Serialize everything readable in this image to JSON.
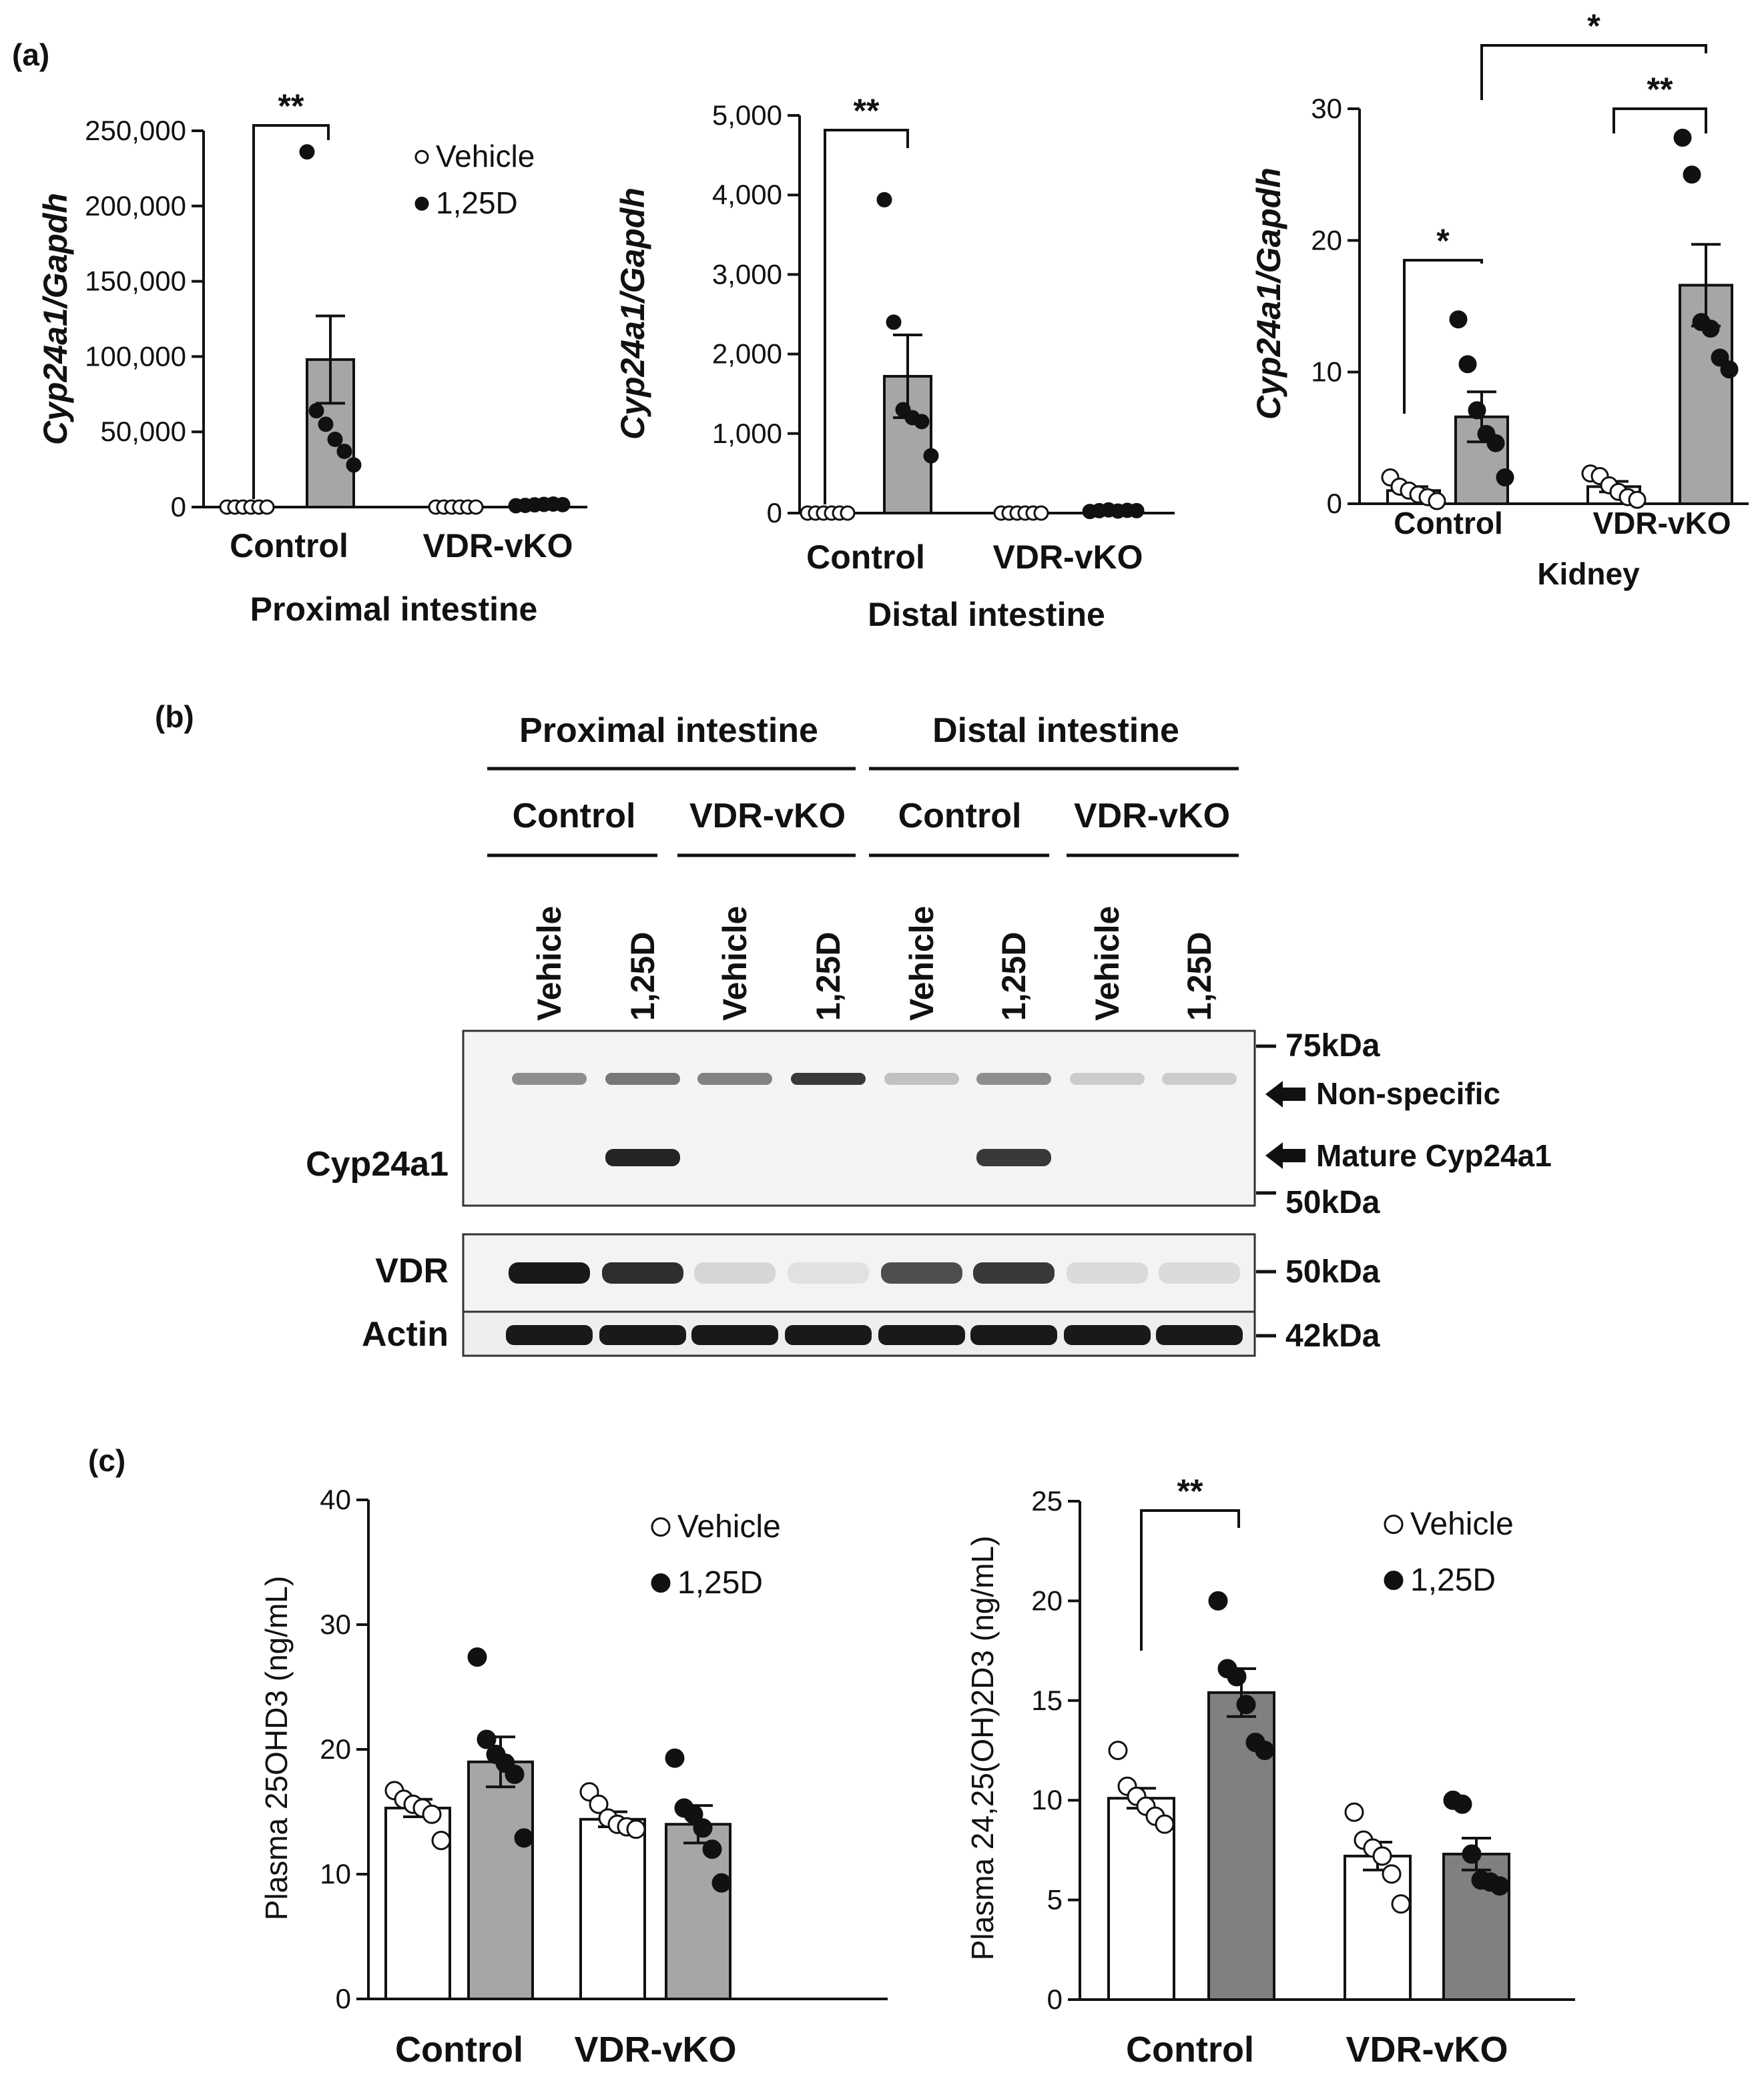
{
  "panel_labels": {
    "a": "(a)",
    "b": "(b)",
    "c": "(c)"
  },
  "legend": {
    "vehicle": "Vehicle",
    "treated": "1,25D"
  },
  "colors": {
    "bar_a": "#a6a6a6",
    "bar_c_left": "#a6a6a6",
    "bar_c_right": "#808080",
    "ink": "#111111"
  },
  "chart_data": [
    {
      "type": "bar",
      "panel": "(a)",
      "title": "",
      "xlabel": "Proximal intestine",
      "ylabel": "Cyp24a1/Gapdh",
      "ylim": [
        0,
        250000
      ],
      "yticks": [
        "0",
        "50,000",
        "100,000",
        "150,000",
        "200,000",
        "250,000"
      ],
      "categories": [
        "Control",
        "VDR-vKO"
      ],
      "series": [
        {
          "name": "Vehicle",
          "means": [
            0,
            0
          ],
          "sems": [
            0,
            0
          ],
          "points": [
            [
              0,
              0,
              0,
              0,
              0,
              0
            ],
            [
              0,
              0,
              0,
              0,
              0,
              0
            ]
          ]
        },
        {
          "name": "1,25D",
          "means": [
            98000,
            1500
          ],
          "sems": [
            29000,
            300
          ],
          "points": [
            [
              236000,
              64000,
              55000,
              45000,
              37000,
              28000
            ],
            [
              900,
              1100,
              1500,
              1800,
              2000,
              1600
            ]
          ]
        }
      ],
      "significance": [
        {
          "label": "**",
          "between": "Control Vehicle vs Control 1,25D"
        }
      ],
      "legend_position": "top-right"
    },
    {
      "type": "bar",
      "panel": "(a)",
      "title": "",
      "xlabel": "Distal intestine",
      "ylabel": "Cyp24a1/Gapdh",
      "ylim": [
        0,
        5000
      ],
      "yticks": [
        "0",
        "1,000",
        "2,000",
        "3,000",
        "4,000",
        "5,000"
      ],
      "categories": [
        "Control",
        "VDR-vKO"
      ],
      "series": [
        {
          "name": "Vehicle",
          "means": [
            0,
            0
          ],
          "sems": [
            0,
            0
          ],
          "points": [
            [
              0,
              0,
              0,
              0,
              0,
              0
            ],
            [
              0,
              0,
              0,
              0,
              0,
              0
            ]
          ]
        },
        {
          "name": "1,25D",
          "means": [
            1720,
            30
          ],
          "sems": [
            520,
            10
          ],
          "points": [
            [
              3940,
              2400,
              1300,
              1200,
              1150,
              720
            ],
            [
              20,
              30,
              40,
              25,
              35,
              30
            ]
          ]
        }
      ],
      "significance": [
        {
          "label": "**",
          "between": "Control Vehicle vs Control 1,25D"
        }
      ]
    },
    {
      "type": "bar",
      "panel": "(a)",
      "title": "",
      "xlabel": "Kidney",
      "ylabel": "Cyp24a1/Gapdh",
      "ylim": [
        0,
        30
      ],
      "yticks": [
        "0",
        "10",
        "20",
        "30"
      ],
      "categories": [
        "Control",
        "VDR-vKO"
      ],
      "series": [
        {
          "name": "Vehicle",
          "means": [
            1.0,
            1.3
          ],
          "sems": [
            0.3,
            0.4
          ],
          "points": [
            [
              2.0,
              1.3,
              1.0,
              0.7,
              0.5,
              0.2
            ],
            [
              2.3,
              2.1,
              1.4,
              0.9,
              0.5,
              0.3
            ]
          ]
        },
        {
          "name": "1,25D",
          "means": [
            6.6,
            16.6
          ],
          "sems": [
            1.9,
            3.1
          ],
          "points": [
            [
              14.0,
              10.6,
              7.1,
              5.3,
              4.6,
              2.0
            ],
            [
              27.8,
              25.0,
              13.8,
              13.3,
              11.1,
              10.2
            ]
          ]
        }
      ],
      "significance": [
        {
          "label": "*",
          "between": "Control Vehicle vs Control 1,25D"
        },
        {
          "label": "**",
          "between": "VDR-vKO Vehicle vs VDR-vKO 1,25D"
        },
        {
          "label": "*",
          "between": "Control 1,25D vs VDR-vKO 1,25D"
        }
      ]
    },
    {
      "type": "bar",
      "panel": "(c)",
      "title": "",
      "xlabel": "",
      "ylabel": "Plasma 25OHD3 (ng/mL)",
      "ylim": [
        0,
        40
      ],
      "yticks": [
        "0",
        "10",
        "20",
        "30",
        "40"
      ],
      "categories": [
        "Control",
        "VDR-vKO"
      ],
      "series": [
        {
          "name": "Vehicle",
          "means": [
            15.3,
            14.4
          ],
          "sems": [
            0.7,
            0.6
          ],
          "points": [
            [
              16.7,
              16.0,
              15.6,
              15.3,
              14.8,
              12.7
            ],
            [
              16.6,
              15.6,
              14.5,
              14.0,
              13.8,
              13.6
            ]
          ]
        },
        {
          "name": "1,25D",
          "means": [
            19.0,
            14.0
          ],
          "sems": [
            2.0,
            1.5
          ],
          "points": [
            [
              27.4,
              20.8,
              19.6,
              18.9,
              18.0,
              12.9
            ],
            [
              19.3,
              15.3,
              14.8,
              13.7,
              12.0,
              9.3
            ]
          ]
        }
      ],
      "legend_position": "top-right"
    },
    {
      "type": "bar",
      "panel": "(c)",
      "title": "",
      "xlabel": "",
      "ylabel": "Plasma 24,25(OH)2D3 (ng/mL)",
      "ylim": [
        0,
        25
      ],
      "yticks": [
        "0",
        "5",
        "10",
        "15",
        "20",
        "25"
      ],
      "categories": [
        "Control",
        "VDR-vKO"
      ],
      "series": [
        {
          "name": "Vehicle",
          "means": [
            10.1,
            7.2
          ],
          "sems": [
            0.5,
            0.7
          ],
          "points": [
            [
              12.5,
              10.7,
              10.2,
              9.7,
              9.2,
              8.8
            ],
            [
              9.4,
              8.0,
              7.6,
              7.2,
              6.3,
              4.8
            ]
          ]
        },
        {
          "name": "1,25D",
          "means": [
            15.4,
            7.3
          ],
          "sems": [
            1.2,
            0.8
          ],
          "points": [
            [
              20.0,
              16.6,
              16.2,
              14.8,
              12.9,
              12.5
            ],
            [
              10.0,
              9.8,
              7.3,
              6.0,
              5.9,
              5.7
            ]
          ]
        }
      ],
      "significance": [
        {
          "label": "**",
          "between": "Control Vehicle vs Control 1,25D"
        }
      ],
      "legend_position": "top-right"
    }
  ],
  "blot": {
    "regions": [
      "Proximal intestine",
      "Distal intestine"
    ],
    "genotypes": [
      "Control",
      "VDR-vKO",
      "Control",
      "VDR-vKO"
    ],
    "lanes": [
      "Vehicle",
      "1,25D",
      "Vehicle",
      "1,25D",
      "Vehicle",
      "1,25D",
      "Vehicle",
      "1,25D"
    ],
    "row_labels": {
      "cyp": "Cyp24a1",
      "vdr": "VDR",
      "actin": "Actin"
    },
    "markers": {
      "m75": "75kDa",
      "m50a": "50kDa",
      "m50b": "50kDa",
      "m42": "42kDa"
    },
    "annotations": {
      "nonspecific": "Non-specific",
      "mature": "Mature Cyp24a1"
    },
    "band_intensity": {
      "nonspecific": [
        0.45,
        0.55,
        0.5,
        0.85,
        0.2,
        0.45,
        0.15,
        0.15
      ],
      "mature": [
        0,
        0.95,
        0,
        0,
        0,
        0.85,
        0,
        0
      ],
      "vdr": [
        1.0,
        0.9,
        0.1,
        0.05,
        0.75,
        0.85,
        0.08,
        0.08
      ],
      "actin": [
        1,
        1,
        1,
        1,
        1,
        1,
        1,
        1
      ]
    }
  }
}
